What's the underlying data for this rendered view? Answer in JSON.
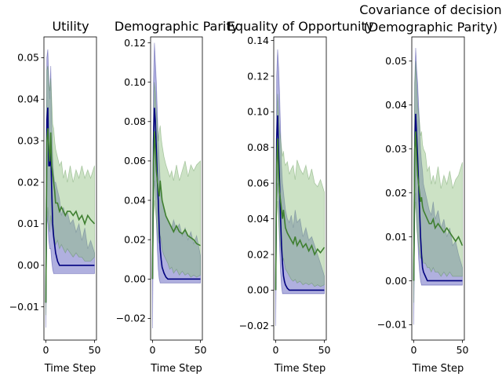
{
  "figure": {
    "background": "#ffffff"
  },
  "colors": {
    "series_a_line": "#00007f",
    "series_a_fill": "#7b7bc9",
    "series_b_line": "#3f7f30",
    "series_b_fill": "#8fbf7f"
  },
  "chart_data": [
    {
      "type": "line",
      "title": "Utility",
      "xlabel": "Time Step",
      "ylabel": "",
      "xlim": [
        -2,
        52
      ],
      "ylim": [
        -0.018,
        0.055
      ],
      "xticks": [
        0,
        50
      ],
      "yticks": [
        -0.01,
        0.0,
        0.01,
        0.02,
        0.03,
        0.04,
        0.05
      ],
      "ytick_labels": [
        "−0.01",
        "0.00",
        "0.01",
        "0.02",
        "0.03",
        "0.04",
        "0.05"
      ],
      "x": [
        0,
        1,
        2,
        3,
        4,
        5,
        6,
        7,
        8,
        9,
        10,
        12,
        14,
        16,
        18,
        20,
        22,
        25,
        28,
        31,
        34,
        37,
        40,
        43,
        46,
        50
      ],
      "series": [
        {
          "mean": [
            -0.009,
            0.035,
            0.038,
            0.024,
            0.024,
            0.028,
            0.018,
            0.01,
            0.007,
            0.005,
            0.003,
            0.001,
            0.0,
            0.0,
            0.0,
            0.0,
            0.0,
            0.0,
            0.0,
            0.0,
            0.0,
            0.0,
            0.0,
            0.0,
            0.0,
            0.0
          ],
          "upper": [
            0.0,
            0.05,
            0.052,
            0.045,
            0.04,
            0.048,
            0.035,
            0.026,
            0.022,
            0.02,
            0.02,
            0.018,
            0.016,
            0.012,
            0.014,
            0.012,
            0.013,
            0.01,
            0.011,
            0.008,
            0.01,
            0.006,
            0.009,
            0.004,
            0.006,
            0.003
          ],
          "lower": [
            -0.015,
            0.012,
            0.01,
            0.006,
            0.004,
            0.004,
            0.001,
            -0.001,
            -0.002,
            -0.002,
            -0.002,
            -0.002,
            -0.002,
            -0.002,
            -0.002,
            -0.002,
            -0.002,
            -0.002,
            -0.002,
            -0.002,
            -0.002,
            -0.002,
            -0.002,
            -0.002,
            -0.002,
            -0.002
          ]
        },
        {
          "mean": [
            -0.009,
            0.03,
            0.033,
            0.028,
            0.025,
            0.032,
            0.024,
            0.022,
            0.02,
            0.018,
            0.015,
            0.015,
            0.013,
            0.014,
            0.013,
            0.012,
            0.013,
            0.013,
            0.012,
            0.013,
            0.011,
            0.012,
            0.01,
            0.012,
            0.011,
            0.01
          ],
          "upper": [
            0.0,
            0.047,
            0.048,
            0.044,
            0.042,
            0.045,
            0.04,
            0.034,
            0.033,
            0.03,
            0.028,
            0.026,
            0.024,
            0.025,
            0.021,
            0.023,
            0.02,
            0.024,
            0.02,
            0.023,
            0.021,
            0.024,
            0.021,
            0.023,
            0.021,
            0.024
          ],
          "lower": [
            -0.012,
            0.01,
            0.014,
            0.01,
            0.008,
            0.012,
            0.01,
            0.008,
            0.006,
            0.006,
            0.005,
            0.006,
            0.004,
            0.005,
            0.004,
            0.003,
            0.004,
            0.003,
            0.002,
            0.003,
            0.002,
            0.002,
            0.001,
            0.001,
            0.001,
            0.002
          ]
        }
      ]
    },
    {
      "type": "line",
      "title": "Demographic Parity",
      "xlabel": "Time Step",
      "ylabel": "",
      "xlim": [
        -2,
        52
      ],
      "ylim": [
        -0.031,
        0.123
      ],
      "xticks": [
        0,
        50
      ],
      "yticks": [
        -0.02,
        0.0,
        0.02,
        0.04,
        0.06,
        0.08,
        0.1,
        0.12
      ],
      "ytick_labels": [
        "−0.02",
        "0.00",
        "0.02",
        "0.04",
        "0.06",
        "0.08",
        "0.10",
        "0.12"
      ],
      "x": [
        0,
        1,
        2,
        3,
        4,
        5,
        6,
        7,
        8,
        9,
        10,
        12,
        14,
        16,
        18,
        20,
        22,
        25,
        28,
        31,
        34,
        37,
        40,
        43,
        46,
        50
      ],
      "series": [
        {
          "mean": [
            0.0,
            0.07,
            0.087,
            0.08,
            0.066,
            0.05,
            0.04,
            0.025,
            0.015,
            0.01,
            0.006,
            0.003,
            0.001,
            0.0,
            0.0,
            0.0,
            0.0,
            0.0,
            0.0,
            0.0,
            0.0,
            0.0,
            0.0,
            0.0,
            0.0,
            0.0
          ],
          "upper": [
            0.0,
            0.1,
            0.12,
            0.11,
            0.1,
            0.085,
            0.07,
            0.06,
            0.05,
            0.045,
            0.04,
            0.035,
            0.032,
            0.03,
            0.028,
            0.026,
            0.03,
            0.025,
            0.028,
            0.022,
            0.026,
            0.02,
            0.024,
            0.018,
            0.022,
            0.012
          ],
          "lower": [
            -0.025,
            0.035,
            0.05,
            0.045,
            0.03,
            0.015,
            0.005,
            0.0,
            -0.002,
            -0.002,
            -0.002,
            -0.002,
            -0.002,
            -0.002,
            -0.002,
            -0.002,
            -0.002,
            -0.002,
            -0.002,
            -0.002,
            -0.002,
            -0.002,
            -0.002,
            -0.002,
            -0.002,
            -0.002
          ]
        },
        {
          "mean": [
            0.0,
            0.06,
            0.075,
            0.065,
            0.055,
            0.05,
            0.045,
            0.042,
            0.05,
            0.045,
            0.04,
            0.036,
            0.032,
            0.03,
            0.028,
            0.026,
            0.024,
            0.027,
            0.024,
            0.023,
            0.025,
            0.022,
            0.021,
            0.02,
            0.018,
            0.017
          ],
          "upper": [
            0.0,
            0.08,
            0.1,
            0.095,
            0.085,
            0.08,
            0.07,
            0.075,
            0.078,
            0.072,
            0.068,
            0.062,
            0.058,
            0.055,
            0.052,
            0.055,
            0.05,
            0.058,
            0.05,
            0.055,
            0.06,
            0.052,
            0.058,
            0.055,
            0.058,
            0.06
          ],
          "lower": [
            0.0,
            0.03,
            0.04,
            0.035,
            0.03,
            0.025,
            0.02,
            0.018,
            0.022,
            0.02,
            0.015,
            0.012,
            0.01,
            0.008,
            0.005,
            0.006,
            0.003,
            0.005,
            0.002,
            0.004,
            0.002,
            0.003,
            0.001,
            0.002,
            0.001,
            0.002
          ]
        }
      ]
    },
    {
      "type": "line",
      "title": "Equality of Opportunity",
      "xlabel": "Time Step",
      "ylabel": "",
      "xlim": [
        -2,
        52
      ],
      "ylim": [
        -0.028,
        0.142
      ],
      "xticks": [
        0,
        50
      ],
      "yticks": [
        -0.02,
        0.0,
        0.02,
        0.04,
        0.06,
        0.08,
        0.1,
        0.12,
        0.14
      ],
      "ytick_labels": [
        "−0.02",
        "0.00",
        "0.02",
        "0.04",
        "0.06",
        "0.08",
        "0.10",
        "0.12",
        "0.14"
      ],
      "x": [
        0,
        1,
        2,
        3,
        4,
        5,
        6,
        7,
        8,
        9,
        10,
        12,
        14,
        16,
        18,
        20,
        22,
        25,
        28,
        31,
        34,
        37,
        40,
        43,
        46,
        50
      ],
      "series": [
        {
          "mean": [
            0.0,
            0.085,
            0.098,
            0.078,
            0.06,
            0.04,
            0.025,
            0.015,
            0.008,
            0.005,
            0.003,
            0.001,
            0.0,
            0.0,
            0.0,
            0.0,
            0.0,
            0.0,
            0.0,
            0.0,
            0.0,
            0.0,
            0.0,
            0.0,
            0.0,
            0.0
          ],
          "upper": [
            0.0,
            0.12,
            0.135,
            0.125,
            0.11,
            0.09,
            0.07,
            0.06,
            0.055,
            0.05,
            0.045,
            0.04,
            0.038,
            0.042,
            0.035,
            0.045,
            0.038,
            0.04,
            0.03,
            0.035,
            0.028,
            0.03,
            0.025,
            0.02,
            0.015,
            0.008
          ],
          "lower": [
            -0.02,
            0.05,
            0.06,
            0.045,
            0.025,
            0.01,
            0.002,
            -0.002,
            -0.002,
            -0.002,
            -0.002,
            -0.002,
            -0.002,
            -0.002,
            -0.002,
            -0.002,
            -0.002,
            -0.002,
            -0.002,
            -0.002,
            -0.002,
            -0.002,
            -0.002,
            -0.002,
            -0.002,
            -0.002
          ]
        },
        {
          "mean": [
            0.0,
            0.07,
            0.085,
            0.065,
            0.055,
            0.05,
            0.045,
            0.04,
            0.045,
            0.04,
            0.035,
            0.032,
            0.03,
            0.028,
            0.026,
            0.03,
            0.025,
            0.028,
            0.024,
            0.026,
            0.022,
            0.025,
            0.02,
            0.023,
            0.021,
            0.024
          ],
          "upper": [
            0.0,
            0.09,
            0.11,
            0.1,
            0.09,
            0.085,
            0.08,
            0.075,
            0.078,
            0.072,
            0.07,
            0.072,
            0.065,
            0.068,
            0.07,
            0.062,
            0.073,
            0.068,
            0.065,
            0.07,
            0.062,
            0.068,
            0.06,
            0.058,
            0.062,
            0.055
          ],
          "lower": [
            0.0,
            0.04,
            0.05,
            0.04,
            0.03,
            0.025,
            0.02,
            0.015,
            0.018,
            0.015,
            0.012,
            0.01,
            0.008,
            0.006,
            0.005,
            0.006,
            0.004,
            0.005,
            0.003,
            0.004,
            0.003,
            0.004,
            0.002,
            0.003,
            0.002,
            0.003
          ]
        }
      ]
    },
    {
      "type": "line",
      "title": "Covariance of decision\n(Demographic Parity)",
      "xlabel": "Time Step",
      "ylabel": "",
      "xlim": [
        -2,
        52
      ],
      "ylim": [
        -0.0135,
        0.0555
      ],
      "xticks": [
        0,
        50
      ],
      "yticks": [
        -0.01,
        0.0,
        0.01,
        0.02,
        0.03,
        0.04,
        0.05
      ],
      "ytick_labels": [
        "−0.01",
        "0.00",
        "0.01",
        "0.02",
        "0.03",
        "0.04",
        "0.05"
      ],
      "x": [
        0,
        1,
        2,
        3,
        4,
        5,
        6,
        7,
        8,
        9,
        10,
        12,
        14,
        16,
        18,
        20,
        22,
        25,
        28,
        31,
        34,
        37,
        40,
        43,
        46,
        50
      ],
      "series": [
        {
          "mean": [
            0.0,
            0.03,
            0.038,
            0.033,
            0.028,
            0.022,
            0.016,
            0.01,
            0.006,
            0.003,
            0.002,
            0.001,
            0.0,
            0.0,
            0.0,
            0.0,
            0.0,
            0.0,
            0.0,
            0.0,
            0.0,
            0.0,
            0.0,
            0.0,
            0.0,
            0.0
          ],
          "upper": [
            0.0,
            0.045,
            0.053,
            0.048,
            0.045,
            0.04,
            0.035,
            0.03,
            0.027,
            0.025,
            0.022,
            0.02,
            0.018,
            0.016,
            0.015,
            0.018,
            0.014,
            0.016,
            0.012,
            0.014,
            0.01,
            0.012,
            0.008,
            0.009,
            0.006,
            0.003
          ],
          "lower": [
            -0.01,
            0.015,
            0.02,
            0.015,
            0.01,
            0.005,
            0.002,
            0.0,
            -0.001,
            -0.001,
            -0.001,
            -0.001,
            -0.001,
            -0.001,
            -0.001,
            -0.001,
            -0.001,
            -0.001,
            -0.001,
            -0.001,
            -0.001,
            -0.001,
            -0.001,
            -0.001,
            -0.001,
            -0.001
          ]
        },
        {
          "mean": [
            0.0,
            0.03,
            0.034,
            0.028,
            0.024,
            0.022,
            0.02,
            0.018,
            0.019,
            0.017,
            0.016,
            0.015,
            0.014,
            0.013,
            0.013,
            0.014,
            0.012,
            0.013,
            0.012,
            0.011,
            0.012,
            0.011,
            0.01,
            0.009,
            0.01,
            0.008
          ],
          "upper": [
            0.0,
            0.045,
            0.05,
            0.045,
            0.04,
            0.038,
            0.036,
            0.033,
            0.034,
            0.031,
            0.03,
            0.029,
            0.025,
            0.026,
            0.022,
            0.024,
            0.022,
            0.026,
            0.021,
            0.024,
            0.022,
            0.025,
            0.021,
            0.023,
            0.024,
            0.027
          ],
          "lower": [
            -0.005,
            0.015,
            0.018,
            0.012,
            0.01,
            0.008,
            0.006,
            0.005,
            0.006,
            0.005,
            0.004,
            0.004,
            0.003,
            0.003,
            0.002,
            0.003,
            0.002,
            0.002,
            0.001,
            0.002,
            0.001,
            0.002,
            0.001,
            0.001,
            0.001,
            0.001
          ]
        }
      ]
    }
  ]
}
